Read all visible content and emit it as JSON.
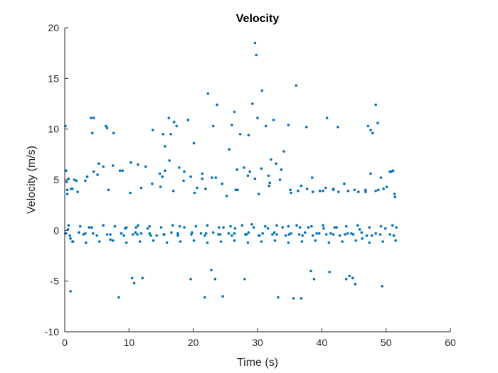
{
  "chart_data": {
    "type": "scatter",
    "title": "Velocity",
    "xlabel": "Time (s)",
    "ylabel": "Velocity (m/s)",
    "xlim": [
      0,
      60
    ],
    "ylim": [
      -10,
      20
    ],
    "xticks": [
      0,
      10,
      20,
      30,
      40,
      50,
      60
    ],
    "yticks": [
      -10,
      -5,
      0,
      5,
      10,
      15,
      20
    ],
    "grid": false,
    "legend": "none",
    "marker_color": "#0072BD",
    "series": [
      {
        "x": [
          0.1,
          0.2,
          0.3,
          0.4,
          0.6,
          0.9,
          1.2,
          1.5,
          4.1,
          4.3,
          4.5,
          6.4,
          6.6,
          7.6,
          8.4,
          10.5,
          10.8,
          12.1,
          13.7,
          14.9,
          15.3,
          15.6,
          16.2,
          16.5,
          17.0,
          17.4,
          18.6,
          19.2,
          19.6,
          20.1,
          20.6,
          21.4,
          21.8,
          22.3,
          22.8,
          23.1,
          23.4,
          23.7,
          24.6,
          25.6,
          26.0,
          26.4,
          26.8,
          27.3,
          28.0,
          28.6,
          29.2,
          29.6,
          29.8,
          30.0,
          30.7,
          31.3,
          31.8,
          32.1,
          32.5,
          33.2,
          34.1,
          34.8,
          35.6,
          36.0,
          36.8,
          37.6,
          38.3,
          38.8,
          40.8,
          41.2,
          42.5,
          43.8,
          44.3,
          44.8,
          45.2,
          47.2,
          47.6,
          47.9,
          48.4,
          48.7,
          49.2,
          49.4,
          50.6,
          51.1,
          1.0,
          2.0,
          3.2,
          4.5,
          5.3,
          6.0,
          7.5,
          9.0,
          10.3,
          11.4,
          12.6,
          14.8,
          15.6,
          16.3,
          17.8,
          19.6,
          21.4,
          22.9,
          24.5,
          26.6,
          27.9,
          28.8,
          29.6,
          30.6,
          31.7,
          32.9,
          33.7,
          35.1,
          36.3,
          37.7,
          38.6,
          39.7,
          40.6,
          41.8,
          42.6,
          44.1,
          45.7,
          46.8,
          47.6,
          48.8,
          49.6,
          50.8,
          51.4,
          0.4,
          1.8,
          3.5,
          5.1,
          6.8,
          8.6,
          10.2,
          11.9,
          13.6,
          15.2,
          16.9,
          18.5,
          20.2,
          21.9,
          23.5,
          25.2,
          26.9,
          28.5,
          30.2,
          31.9,
          33.5,
          35.2,
          36.8,
          38.5,
          40.2,
          41.8,
          43.5,
          45.1,
          46.8,
          48.4,
          50.1,
          51.3,
          0.6,
          2.4,
          4.2,
          6.0,
          7.8,
          9.6,
          11.4,
          13.2,
          15.0,
          16.8,
          18.6,
          20.4,
          22.2,
          24.0,
          25.8,
          27.6,
          29.4,
          31.2,
          33.0,
          34.8,
          36.6,
          38.4,
          40.2,
          42.0,
          43.8,
          45.6,
          47.4,
          49.2,
          51.0,
          51.6,
          0.2,
          2.2,
          4.4,
          6.6,
          8.8,
          11.0,
          13.2,
          15.4,
          17.6,
          19.8,
          22.0,
          24.2,
          26.4,
          28.6,
          30.8,
          33.0,
          35.2,
          37.4,
          39.6,
          41.8,
          44.0,
          46.2,
          48.4,
          50.6,
          1.2,
          3.3,
          5.4,
          7.5,
          9.6,
          11.7,
          13.8,
          15.9,
          18.0,
          20.1,
          22.2,
          24.3,
          26.4,
          28.5,
          30.6,
          32.7,
          34.8,
          36.9,
          39.0,
          41.1,
          43.2,
          45.3,
          47.4,
          49.5,
          51.5,
          0.8,
          2.9,
          5.0,
          7.1,
          9.2,
          11.3,
          13.4,
          15.5,
          17.6,
          19.7,
          21.8,
          23.9,
          26.0,
          28.1,
          30.2,
          32.3,
          34.4,
          36.5,
          38.6,
          40.7,
          42.8,
          44.9,
          47.0,
          49.1,
          51.2,
          0.1,
          0.5,
          0.9,
          1.3,
          3.2,
          3.8,
          7.1,
          9.4,
          10.6,
          11.1,
          11.9,
          12.9,
          14.3,
          16.6,
          17.9,
          21.2,
          23.1,
          24.7,
          25.5,
          26.5,
          28.3,
          29.1,
          30.3,
          31.6,
          32.6,
          33.9,
          34.9,
          36.1,
          37.0,
          37.9,
          39.2,
          40.3,
          41.4,
          42.3,
          43.6,
          44.6,
          45.9,
          46.3,
          47.8,
          49.9,
          51.2
        ],
        "y": [
          10.3,
          5.9,
          4.8,
          4.0,
          5.1,
          -6.0,
          4.1,
          5.0,
          11.1,
          9.6,
          11.1,
          10.3,
          10.1,
          9.6,
          -6.6,
          -4.7,
          -5.2,
          -4.7,
          9.9,
          4.3,
          9.5,
          8.3,
          11.1,
          9.5,
          10.7,
          10.3,
          5.8,
          10.9,
          -4.8,
          8.6,
          4.2,
          5.6,
          -6.6,
          13.5,
          -3.9,
          10.3,
          -4.8,
          12.4,
          -6.5,
          8.0,
          10.4,
          11.7,
          6.0,
          9.5,
          -4.8,
          9.4,
          12.5,
          18.5,
          17.3,
          11.1,
          13.8,
          10.3,
          4.4,
          7.0,
          10.9,
          -6.6,
          7.8,
          10.4,
          -6.7,
          14.3,
          -6.7,
          10.2,
          -4.0,
          -4.8,
          11.1,
          -4.1,
          10.2,
          -4.8,
          -4.5,
          -4.7,
          -5.3,
          10.3,
          9.9,
          9.6,
          12.4,
          10.6,
          5.2,
          -5.5,
          5.8,
          5.9,
          4.1,
          3.8,
          4.9,
          5.8,
          6.6,
          6.3,
          6.4,
          5.9,
          6.7,
          6.5,
          6.3,
          5.6,
          5.9,
          6.9,
          6.2,
          5.3,
          5.1,
          5.2,
          4.6,
          4.0,
          6.2,
          5.8,
          5.1,
          6.1,
          5.4,
          6.6,
          6.0,
          4.0,
          3.9,
          4.1,
          3.8,
          3.9,
          4.2,
          4.0,
          3.8,
          3.9,
          3.8,
          4.0,
          5.6,
          4.0,
          4.1,
          5.8,
          3.3,
          3.6,
          4.9,
          5.3,
          5.5,
          4.0,
          5.9,
          3.7,
          4.2,
          4.6,
          5.3,
          3.9,
          4.9,
          3.7,
          4.1,
          5.2,
          3.4,
          4.0,
          5.4,
          3.6,
          4.7,
          5.0,
          3.7,
          4.4,
          5.2,
          3.9,
          4.1,
          4.6,
          4.0,
          3.8,
          3.9,
          4.3,
          3.6,
          0.5,
          0.4,
          0.3,
          0.5,
          0.4,
          0.3,
          0.5,
          0.4,
          0.3,
          0.5,
          0.3,
          0.4,
          0.5,
          0.3,
          0.4,
          0.5,
          0.3,
          0.4,
          0.5,
          0.4,
          0.3,
          0.4,
          0.5,
          0.3,
          0.4,
          0.5,
          0.3,
          0.4,
          0.5,
          0.3,
          -0.3,
          -0.2,
          -0.3,
          -0.4,
          -0.3,
          -0.2,
          -0.3,
          -0.4,
          -0.3,
          -0.2,
          -0.3,
          -0.4,
          -0.3,
          -0.2,
          -0.3,
          -0.4,
          -0.3,
          -0.2,
          -0.3,
          -0.4,
          -0.3,
          -0.2,
          -0.3,
          -0.4,
          -1.1,
          -1.2,
          -1.1,
          -1.0,
          -1.2,
          -1.1,
          -1.0,
          -1.2,
          -1.1,
          -1.0,
          -1.2,
          -1.1,
          -1.0,
          -1.2,
          -1.1,
          -1.0,
          -1.2,
          -1.1,
          -1.0,
          -1.2,
          -1.1,
          -1.0,
          -1.2,
          -1.1,
          -1.0,
          -0.5,
          -0.4,
          -0.5,
          -0.4,
          -0.5,
          -0.4,
          -0.5,
          -0.4,
          -0.5,
          -0.4,
          -0.5,
          -0.4,
          -0.5,
          -0.4,
          -0.5,
          -0.4,
          -0.5,
          -0.4,
          -0.5,
          -0.4,
          -0.5,
          -0.4,
          -0.5,
          -0.4,
          -0.5,
          -0.3,
          0.1,
          -0.8,
          -1.1,
          -0.3,
          0.3,
          -0.9,
          0.2,
          -0.4,
          0.3,
          -0.3,
          0.2,
          -0.5,
          -0.2,
          0.4,
          -0.3,
          -0.2,
          0.3,
          -0.3,
          0.2,
          -0.4,
          0.6,
          -0.5,
          0.2,
          -0.2,
          0.3,
          -0.4,
          0.5,
          -0.5,
          0.3,
          -0.3,
          0.2,
          -0.3,
          0.3,
          -0.4,
          -0.3,
          0.1,
          -0.8,
          -0.5,
          0.2,
          -0.5
        ]
      }
    ]
  }
}
